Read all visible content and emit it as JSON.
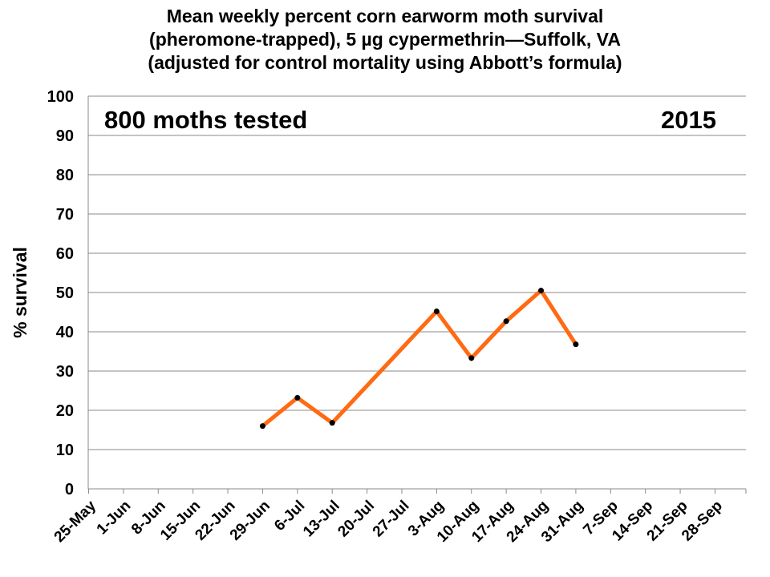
{
  "chart_data": {
    "type": "line",
    "title": [
      "Mean weekly percent corn earworm moth survival",
      "(pheromone-trapped), 5 µg cypermethrin—Suffolk, VA",
      "(adjusted for control mortality using Abbott’s formula)"
    ],
    "ylabel": "% survival",
    "ylim": [
      0,
      100
    ],
    "yticks": [
      0,
      10,
      20,
      30,
      40,
      50,
      60,
      70,
      80,
      90,
      100
    ],
    "categories": [
      "25-May",
      "1-Jun",
      "8-Jun",
      "15-Jun",
      "22-Jun",
      "29-Jun",
      "6-Jul",
      "13-Jul",
      "20-Jul",
      "27-Jul",
      "3-Aug",
      "10-Aug",
      "17-Aug",
      "24-Aug",
      "31-Aug",
      "7-Sep",
      "14-Sep",
      "21-Sep",
      "28-Sep"
    ],
    "series": [
      {
        "color": "#FF6A13",
        "marker_color": "#000000",
        "points": [
          {
            "x": "29-Jun",
            "y": 16.0
          },
          {
            "x": "6-Jul",
            "y": 23.2
          },
          {
            "x": "13-Jul",
            "y": 16.8
          },
          {
            "x": "3-Aug",
            "y": 45.2
          },
          {
            "x": "10-Aug",
            "y": 33.3
          },
          {
            "x": "17-Aug",
            "y": 42.7
          },
          {
            "x": "24-Aug",
            "y": 50.5
          },
          {
            "x": "31-Aug",
            "y": 36.8
          }
        ]
      }
    ],
    "annotations": [
      "800 moths tested",
      "2015"
    ],
    "grid": true,
    "legend": "none"
  }
}
